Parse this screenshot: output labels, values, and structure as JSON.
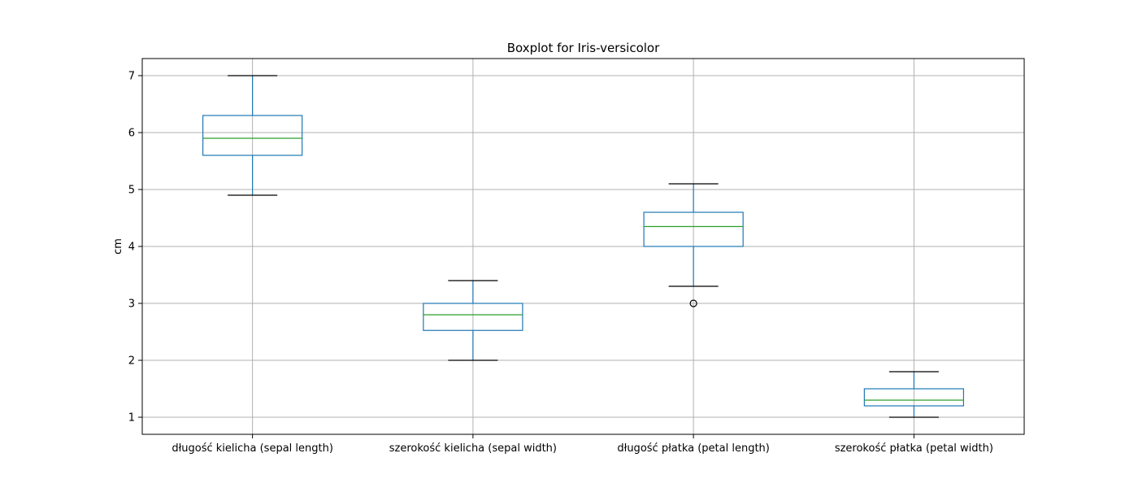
{
  "chart_data": {
    "type": "boxplot",
    "title": "Boxplot for Iris-versicolor",
    "xlabel": "",
    "ylabel": "cm",
    "ylim": [
      0.7,
      7.3
    ],
    "yticks": [
      1,
      2,
      3,
      4,
      5,
      6,
      7
    ],
    "grid": true,
    "colors": {
      "box": "#1f77b4",
      "median": "#2ca02c",
      "whisker_cap": "#000000",
      "outlier": "#000000"
    },
    "categories": [
      "długość kielicha (sepal length)",
      "szerokość kielicha (sepal width)",
      "długość płatka (petal length)",
      "szerokość płatka (petal width)"
    ],
    "boxes": [
      {
        "whislo": 4.9,
        "q1": 5.6,
        "med": 5.9,
        "q3": 6.3,
        "whishi": 7.0,
        "fliers": []
      },
      {
        "whislo": 2.0,
        "q1": 2.525,
        "med": 2.8,
        "q3": 3.0,
        "whishi": 3.4,
        "fliers": []
      },
      {
        "whislo": 3.3,
        "q1": 4.0,
        "med": 4.35,
        "q3": 4.6,
        "whishi": 5.1,
        "fliers": [
          3.0
        ]
      },
      {
        "whislo": 1.0,
        "q1": 1.2,
        "med": 1.3,
        "q3": 1.5,
        "whishi": 1.8,
        "fliers": []
      }
    ]
  }
}
